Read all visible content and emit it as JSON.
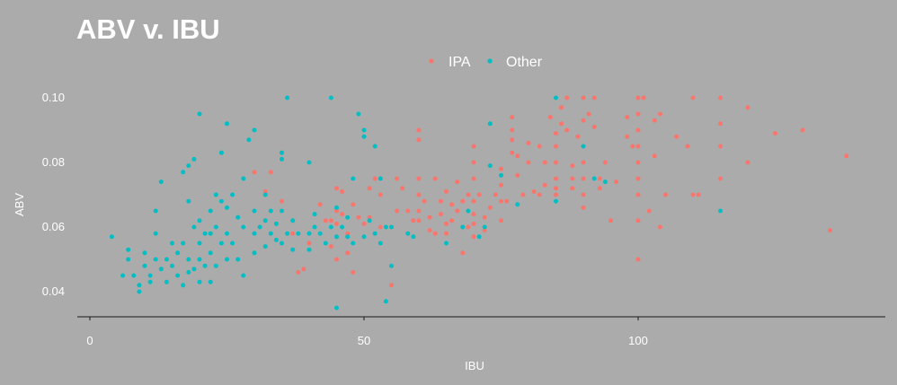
{
  "chart_data": {
    "type": "scatter",
    "title": "ABV v. IBU",
    "xlabel": "IBU",
    "ylabel": "ABV",
    "xlim": [
      -1.5,
      145
    ],
    "ylim": [
      0.03,
      0.1
    ],
    "x_ticks": [
      "0",
      "50",
      "100"
    ],
    "y_ticks": [
      "0.04",
      "0.06",
      "0.08",
      "0.10"
    ],
    "grid": false,
    "legend_position": "top",
    "colors": {
      "IPA": "#f8766d",
      "Other": "#00bfc4",
      "background": "#ababab"
    },
    "series": [
      {
        "name": "IPA",
        "points": [
          [
            30,
            0.077
          ],
          [
            32,
            0.071
          ],
          [
            33,
            0.077
          ],
          [
            35,
            0.068
          ],
          [
            37,
            0.058
          ],
          [
            38,
            0.046
          ],
          [
            39,
            0.047
          ],
          [
            40,
            0.055
          ],
          [
            42,
            0.067
          ],
          [
            43,
            0.062
          ],
          [
            44,
            0.062
          ],
          [
            44,
            0.054
          ],
          [
            45,
            0.072
          ],
          [
            45,
            0.065
          ],
          [
            45,
            0.061
          ],
          [
            45,
            0.057
          ],
          [
            45,
            0.05
          ],
          [
            46,
            0.071
          ],
          [
            46,
            0.064
          ],
          [
            47,
            0.058
          ],
          [
            47,
            0.052
          ],
          [
            48,
            0.067
          ],
          [
            48,
            0.046
          ],
          [
            49,
            0.063
          ],
          [
            50,
            0.061
          ],
          [
            51,
            0.072
          ],
          [
            51,
            0.063
          ],
          [
            52,
            0.075
          ],
          [
            53,
            0.07
          ],
          [
            53,
            0.06
          ],
          [
            55,
            0.06
          ],
          [
            55,
            0.042
          ],
          [
            56,
            0.065
          ],
          [
            56,
            0.075
          ],
          [
            57,
            0.072
          ],
          [
            58,
            0.065
          ],
          [
            58,
            0.058
          ],
          [
            59,
            0.062
          ],
          [
            60,
            0.09
          ],
          [
            60,
            0.087
          ],
          [
            60,
            0.075
          ],
          [
            60,
            0.07
          ],
          [
            60,
            0.065
          ],
          [
            60,
            0.062
          ],
          [
            61,
            0.068
          ],
          [
            62,
            0.063
          ],
          [
            62,
            0.059
          ],
          [
            63,
            0.075
          ],
          [
            63,
            0.058
          ],
          [
            64,
            0.068
          ],
          [
            64,
            0.064
          ],
          [
            65,
            0.071
          ],
          [
            65,
            0.061
          ],
          [
            65,
            0.058
          ],
          [
            66,
            0.067
          ],
          [
            66,
            0.062
          ],
          [
            67,
            0.074
          ],
          [
            67,
            0.065
          ],
          [
            68,
            0.068
          ],
          [
            68,
            0.052
          ],
          [
            69,
            0.07
          ],
          [
            69,
            0.06
          ],
          [
            70,
            0.085
          ],
          [
            70,
            0.08
          ],
          [
            70,
            0.075
          ],
          [
            70,
            0.068
          ],
          [
            70,
            0.064
          ],
          [
            70,
            0.061
          ],
          [
            70,
            0.057
          ],
          [
            71,
            0.07
          ],
          [
            72,
            0.063
          ],
          [
            72,
            0.059
          ],
          [
            73,
            0.066
          ],
          [
            74,
            0.07
          ],
          [
            75,
            0.078
          ],
          [
            75,
            0.073
          ],
          [
            75,
            0.068
          ],
          [
            75,
            0.062
          ],
          [
            76,
            0.068
          ],
          [
            77,
            0.094
          ],
          [
            77,
            0.09
          ],
          [
            77,
            0.087
          ],
          [
            77,
            0.083
          ],
          [
            78,
            0.082
          ],
          [
            78,
            0.076
          ],
          [
            79,
            0.07
          ],
          [
            80,
            0.08
          ],
          [
            80,
            0.086
          ],
          [
            81,
            0.071
          ],
          [
            82,
            0.085
          ],
          [
            82,
            0.07
          ],
          [
            83,
            0.08
          ],
          [
            83,
            0.073
          ],
          [
            84,
            0.094
          ],
          [
            85,
            0.089
          ],
          [
            85,
            0.085
          ],
          [
            85,
            0.08
          ],
          [
            85,
            0.075
          ],
          [
            85,
            0.072
          ],
          [
            85,
            0.07
          ],
          [
            86,
            0.097
          ],
          [
            86,
            0.092
          ],
          [
            87,
            0.1
          ],
          [
            87,
            0.09
          ],
          [
            88,
            0.079
          ],
          [
            88,
            0.075
          ],
          [
            88,
            0.072
          ],
          [
            89,
            0.088
          ],
          [
            90,
            0.1
          ],
          [
            90,
            0.093
          ],
          [
            90,
            0.085
          ],
          [
            90,
            0.08
          ],
          [
            90,
            0.075
          ],
          [
            90,
            0.07
          ],
          [
            90,
            0.066
          ],
          [
            91,
            0.095
          ],
          [
            92,
            0.1
          ],
          [
            92,
            0.091
          ],
          [
            93,
            0.075
          ],
          [
            93,
            0.072
          ],
          [
            94,
            0.08
          ],
          [
            95,
            0.062
          ],
          [
            96,
            0.074
          ],
          [
            98,
            0.094
          ],
          [
            98,
            0.088
          ],
          [
            99,
            0.085
          ],
          [
            100,
            0.1
          ],
          [
            100,
            0.095
          ],
          [
            100,
            0.09
          ],
          [
            100,
            0.085
          ],
          [
            100,
            0.08
          ],
          [
            100,
            0.075
          ],
          [
            100,
            0.07
          ],
          [
            100,
            0.062
          ],
          [
            100,
            0.05
          ],
          [
            101,
            0.1
          ],
          [
            102,
            0.065
          ],
          [
            103,
            0.082
          ],
          [
            103,
            0.093
          ],
          [
            104,
            0.06
          ],
          [
            104,
            0.095
          ],
          [
            105,
            0.07
          ],
          [
            107,
            0.088
          ],
          [
            109,
            0.085
          ],
          [
            110,
            0.1
          ],
          [
            110,
            0.07
          ],
          [
            111,
            0.07
          ],
          [
            115,
            0.1
          ],
          [
            115,
            0.092
          ],
          [
            115,
            0.085
          ],
          [
            115,
            0.075
          ],
          [
            120,
            0.097
          ],
          [
            120,
            0.08
          ],
          [
            125,
            0.089
          ],
          [
            130,
            0.09
          ],
          [
            135,
            0.059
          ],
          [
            138,
            0.082
          ]
        ]
      },
      {
        "name": "Other",
        "points": [
          [
            4,
            0.057
          ],
          [
            6,
            0.045
          ],
          [
            7,
            0.053
          ],
          [
            7,
            0.05
          ],
          [
            8,
            0.045
          ],
          [
            9,
            0.042
          ],
          [
            9,
            0.04
          ],
          [
            10,
            0.052
          ],
          [
            10,
            0.048
          ],
          [
            11,
            0.045
          ],
          [
            11,
            0.043
          ],
          [
            12,
            0.058
          ],
          [
            12,
            0.065
          ],
          [
            12,
            0.05
          ],
          [
            13,
            0.074
          ],
          [
            13,
            0.047
          ],
          [
            14,
            0.05
          ],
          [
            14,
            0.043
          ],
          [
            15,
            0.048
          ],
          [
            15,
            0.055
          ],
          [
            16,
            0.052
          ],
          [
            16,
            0.045
          ],
          [
            17,
            0.042
          ],
          [
            17,
            0.077
          ],
          [
            17,
            0.055
          ],
          [
            18,
            0.079
          ],
          [
            18,
            0.068
          ],
          [
            18,
            0.05
          ],
          [
            18,
            0.046
          ],
          [
            19,
            0.081
          ],
          [
            19,
            0.06
          ],
          [
            19,
            0.047
          ],
          [
            20,
            0.095
          ],
          [
            20,
            0.062
          ],
          [
            20,
            0.055
          ],
          [
            20,
            0.05
          ],
          [
            20,
            0.043
          ],
          [
            21,
            0.058
          ],
          [
            21,
            0.048
          ],
          [
            22,
            0.065
          ],
          [
            22,
            0.058
          ],
          [
            22,
            0.052
          ],
          [
            22,
            0.043
          ],
          [
            23,
            0.07
          ],
          [
            23,
            0.06
          ],
          [
            23,
            0.048
          ],
          [
            24,
            0.083
          ],
          [
            24,
            0.068
          ],
          [
            24,
            0.055
          ],
          [
            25,
            0.092
          ],
          [
            25,
            0.066
          ],
          [
            25,
            0.058
          ],
          [
            25,
            0.05
          ],
          [
            26,
            0.07
          ],
          [
            26,
            0.055
          ],
          [
            27,
            0.063
          ],
          [
            27,
            0.05
          ],
          [
            28,
            0.075
          ],
          [
            28,
            0.06
          ],
          [
            28,
            0.045
          ],
          [
            29,
            0.087
          ],
          [
            30,
            0.09
          ],
          [
            30,
            0.065
          ],
          [
            30,
            0.058
          ],
          [
            30,
            0.052
          ],
          [
            31,
            0.06
          ],
          [
            32,
            0.07
          ],
          [
            32,
            0.062
          ],
          [
            32,
            0.054
          ],
          [
            33,
            0.065
          ],
          [
            33,
            0.058
          ],
          [
            34,
            0.061
          ],
          [
            34,
            0.056
          ],
          [
            35,
            0.083
          ],
          [
            35,
            0.081
          ],
          [
            35,
            0.065
          ],
          [
            35,
            0.055
          ],
          [
            36,
            0.1
          ],
          [
            36,
            0.058
          ],
          [
            37,
            0.062
          ],
          [
            37,
            0.053
          ],
          [
            38,
            0.058
          ],
          [
            40,
            0.08
          ],
          [
            40,
            0.058
          ],
          [
            40,
            0.053
          ],
          [
            41,
            0.064
          ],
          [
            41,
            0.06
          ],
          [
            42,
            0.058
          ],
          [
            43,
            0.055
          ],
          [
            44,
            0.1
          ],
          [
            44,
            0.06
          ],
          [
            45,
            0.066
          ],
          [
            45,
            0.057
          ],
          [
            45,
            0.035
          ],
          [
            46,
            0.06
          ],
          [
            47,
            0.063
          ],
          [
            47,
            0.057
          ],
          [
            48,
            0.075
          ],
          [
            48,
            0.055
          ],
          [
            49,
            0.095
          ],
          [
            50,
            0.09
          ],
          [
            50,
            0.088
          ],
          [
            50,
            0.057
          ],
          [
            51,
            0.062
          ],
          [
            52,
            0.085
          ],
          [
            52,
            0.058
          ],
          [
            53,
            0.075
          ],
          [
            53,
            0.055
          ],
          [
            54,
            0.06
          ],
          [
            54,
            0.037
          ],
          [
            55,
            0.06
          ],
          [
            55,
            0.048
          ],
          [
            58,
            0.058
          ],
          [
            59,
            0.057
          ],
          [
            65,
            0.055
          ],
          [
            68,
            0.06
          ],
          [
            69,
            0.065
          ],
          [
            71,
            0.057
          ],
          [
            72,
            0.06
          ],
          [
            73,
            0.092
          ],
          [
            73,
            0.079
          ],
          [
            75,
            0.076
          ],
          [
            78,
            0.067
          ],
          [
            85,
            0.1
          ],
          [
            85,
            0.068
          ],
          [
            90,
            0.085
          ],
          [
            92,
            0.075
          ],
          [
            94,
            0.074
          ],
          [
            115,
            0.065
          ]
        ]
      }
    ]
  }
}
